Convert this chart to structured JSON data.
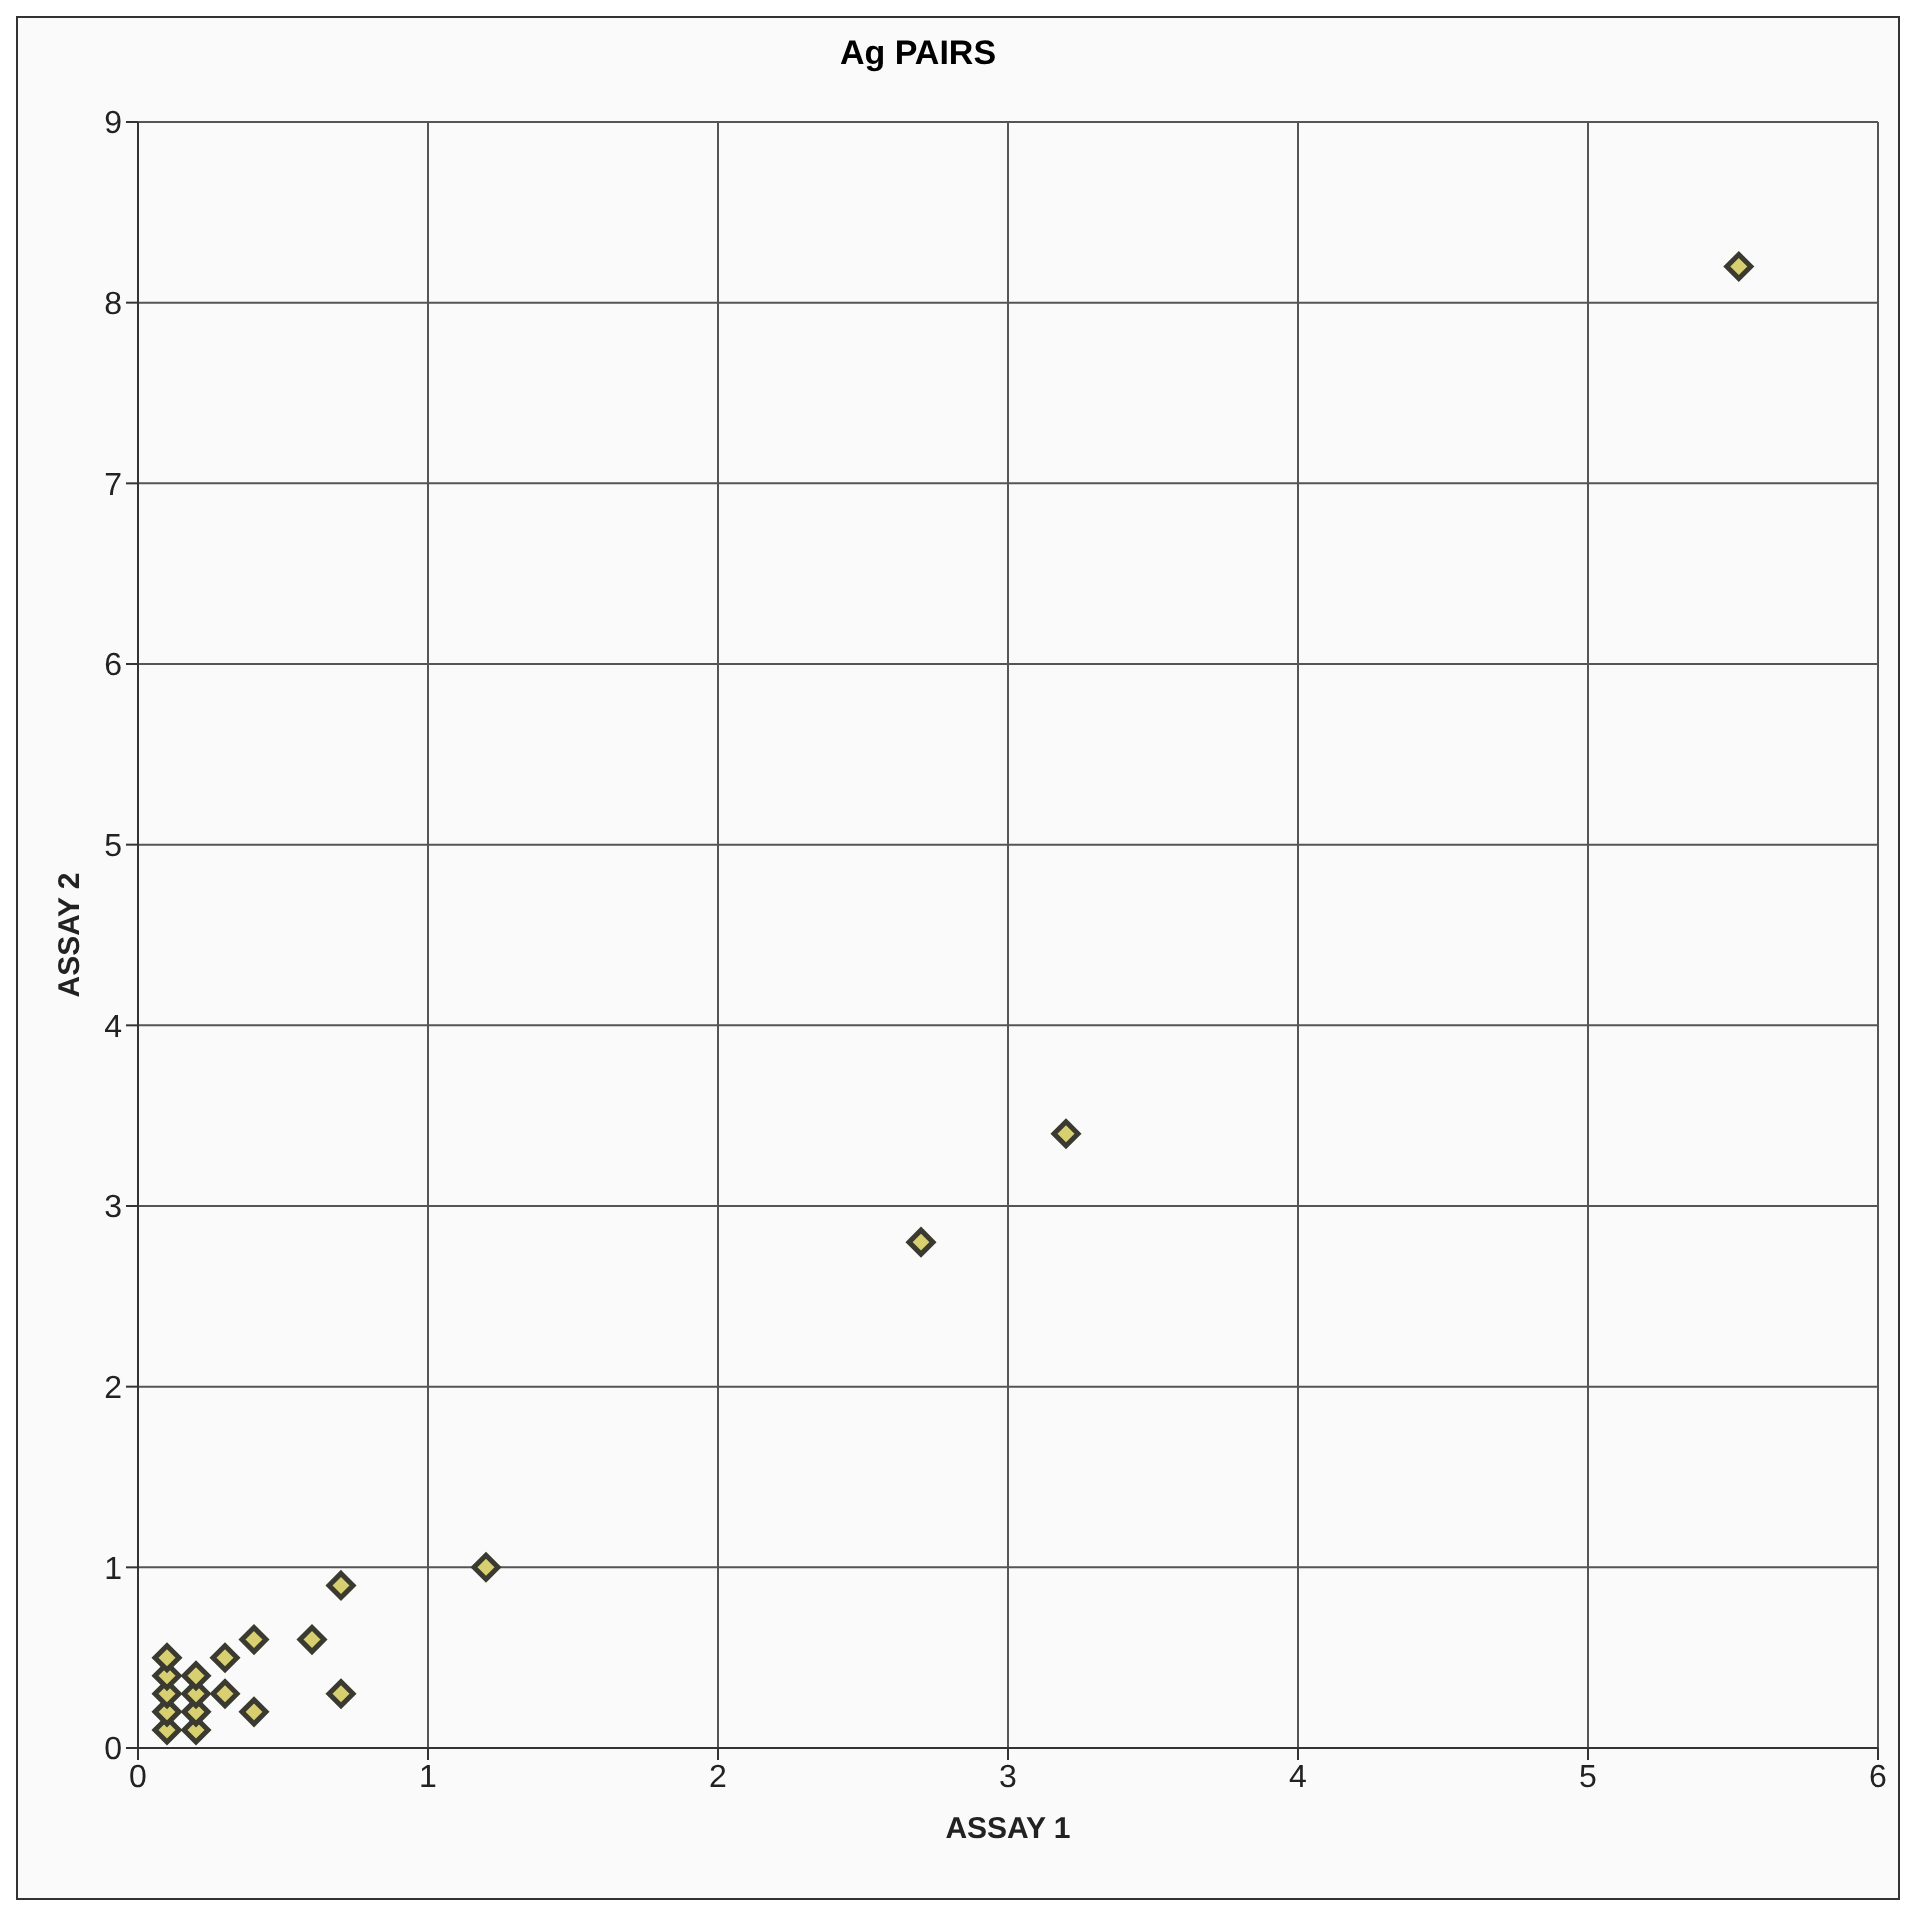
{
  "chart_data": {
    "type": "scatter",
    "title": "Ag PAIRS",
    "xlabel": "ASSAY 1",
    "ylabel": "ASSAY 2",
    "x": [
      0.1,
      0.1,
      0.1,
      0.1,
      0.1,
      0.2,
      0.2,
      0.2,
      0.2,
      0.3,
      0.3,
      0.4,
      0.4,
      0.6,
      0.7,
      0.7,
      1.2,
      2.7,
      3.2,
      5.52
    ],
    "series": [
      {
        "color": "#3a3a30",
        "values": [
          0.1,
          0.2,
          0.3,
          0.4,
          0.5,
          0.1,
          0.2,
          0.3,
          0.4,
          0.3,
          0.5,
          0.2,
          0.6,
          0.6,
          0.9,
          0.3,
          1.0,
          2.8,
          3.4,
          8.2
        ]
      }
    ],
    "xlim": [
      0,
      6
    ],
    "xticks": [
      0,
      1,
      2,
      3,
      4,
      5,
      6
    ],
    "ylim": [
      0,
      9
    ],
    "yticks": [
      0,
      1,
      2,
      3,
      4,
      5,
      6,
      7,
      8,
      9
    ],
    "grid": true,
    "legend": false,
    "marker": "diamond"
  }
}
